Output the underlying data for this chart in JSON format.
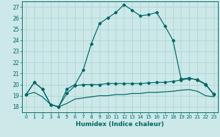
{
  "xlabel": "Humidex (Indice chaleur)",
  "background_color": "#cce8e8",
  "grid_color": "#aacfcf",
  "line_color": "#006666",
  "xlim": [
    -0.5,
    23.5
  ],
  "ylim": [
    17.5,
    27.5
  ],
  "yticks": [
    18,
    19,
    20,
    21,
    22,
    23,
    24,
    25,
    26,
    27
  ],
  "xticks": [
    0,
    1,
    2,
    3,
    4,
    5,
    6,
    7,
    8,
    9,
    10,
    11,
    12,
    13,
    14,
    15,
    16,
    17,
    18,
    19,
    20,
    21,
    22,
    23
  ],
  "series1_x": [
    0,
    1,
    2,
    3,
    4,
    5,
    6,
    7,
    8,
    9,
    10,
    11,
    12,
    13,
    14,
    15,
    16,
    17,
    18,
    19,
    20,
    21,
    22,
    23
  ],
  "series1_y": [
    19.1,
    20.2,
    19.6,
    18.2,
    18.0,
    19.6,
    20.0,
    21.3,
    23.7,
    25.5,
    26.0,
    26.5,
    27.2,
    26.7,
    26.2,
    26.3,
    26.5,
    25.3,
    24.0,
    20.5,
    20.6,
    20.4,
    20.0,
    19.1
  ],
  "series2_x": [
    0,
    1,
    2,
    3,
    4,
    5,
    6,
    7,
    8,
    9,
    10,
    11,
    12,
    13,
    14,
    15,
    16,
    17,
    18,
    19,
    20,
    21,
    22,
    23
  ],
  "series2_y": [
    19.1,
    20.2,
    19.6,
    18.2,
    18.0,
    19.2,
    19.9,
    20.0,
    20.0,
    20.0,
    20.1,
    20.1,
    20.1,
    20.1,
    20.1,
    20.15,
    20.2,
    20.2,
    20.3,
    20.4,
    20.55,
    20.45,
    20.05,
    19.15
  ],
  "series3_x": [
    0,
    1,
    2,
    3,
    4,
    5,
    6,
    7,
    8,
    9,
    10,
    11,
    12,
    13,
    14,
    15,
    16,
    17,
    18,
    19,
    20,
    21,
    22,
    23
  ],
  "series3_y": [
    19.1,
    19.3,
    18.9,
    18.2,
    18.0,
    18.3,
    18.7,
    18.8,
    18.9,
    19.0,
    19.0,
    19.1,
    19.1,
    19.2,
    19.2,
    19.3,
    19.3,
    19.35,
    19.4,
    19.5,
    19.55,
    19.4,
    19.0,
    18.9
  ]
}
